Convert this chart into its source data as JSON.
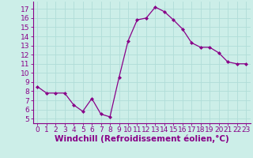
{
  "x": [
    0,
    1,
    2,
    3,
    4,
    5,
    6,
    7,
    8,
    9,
    10,
    11,
    12,
    13,
    14,
    15,
    16,
    17,
    18,
    19,
    20,
    21,
    22,
    23
  ],
  "y": [
    8.5,
    7.8,
    7.8,
    7.8,
    6.5,
    5.8,
    7.2,
    5.5,
    5.2,
    9.5,
    13.5,
    15.8,
    16.0,
    17.2,
    16.7,
    15.8,
    14.8,
    13.3,
    12.8,
    12.8,
    12.2,
    11.2,
    11.0,
    11.0
  ],
  "line_color": "#880088",
  "marker": "D",
  "marker_size": 2.0,
  "bg_color": "#cceee8",
  "grid_color": "#b0ddd8",
  "xlabel": "Windchill (Refroidissement éolien,°C)",
  "ylim": [
    4.5,
    17.8
  ],
  "xlim": [
    -0.5,
    23.5
  ],
  "yticks": [
    5,
    6,
    7,
    8,
    9,
    10,
    11,
    12,
    13,
    14,
    15,
    16,
    17
  ],
  "xticks": [
    0,
    1,
    2,
    3,
    4,
    5,
    6,
    7,
    8,
    9,
    10,
    11,
    12,
    13,
    14,
    15,
    16,
    17,
    18,
    19,
    20,
    21,
    22,
    23
  ],
  "tick_color": "#880088",
  "label_fontsize": 7.5,
  "tick_fontsize": 6.5,
  "spine_color": "#880088",
  "spine_bottom_color": "#880088"
}
